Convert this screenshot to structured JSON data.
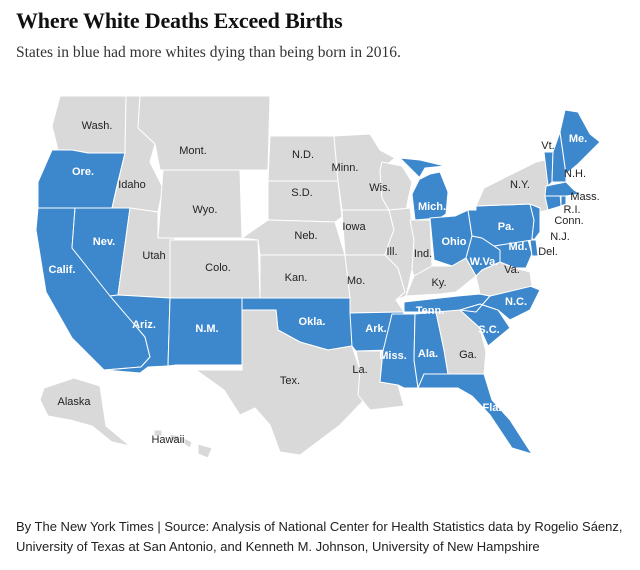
{
  "title": "Where White Deaths Exceed Births",
  "subtitle": "States in blue had more whites dying than being born in 2016.",
  "credit": "By The New York Times | Source: Analysis of National Center for Health Statistics data by Rogelio Sáenz, University of Texas at San Antonio, and Kenneth M. Johnson, University of New Hampshire",
  "colors": {
    "highlight": "#3d87cc",
    "other": "#d9d9d9",
    "highlight_text": "#ffffff",
    "other_text": "#222222"
  },
  "states": [
    {
      "id": "wa",
      "label": "Wash.",
      "highlight": false
    },
    {
      "id": "or",
      "label": "Ore.",
      "highlight": true
    },
    {
      "id": "ca",
      "label": "Calif.",
      "highlight": true
    },
    {
      "id": "nv",
      "label": "Nev.",
      "highlight": true
    },
    {
      "id": "id",
      "label": "Idaho",
      "highlight": false
    },
    {
      "id": "mt",
      "label": "Mont.",
      "highlight": false
    },
    {
      "id": "wy",
      "label": "Wyo.",
      "highlight": false
    },
    {
      "id": "ut",
      "label": "Utah",
      "highlight": false
    },
    {
      "id": "co",
      "label": "Colo.",
      "highlight": false
    },
    {
      "id": "az",
      "label": "Ariz.",
      "highlight": true
    },
    {
      "id": "nm",
      "label": "N.M.",
      "highlight": true
    },
    {
      "id": "nd",
      "label": "N.D.",
      "highlight": false
    },
    {
      "id": "sd",
      "label": "S.D.",
      "highlight": false
    },
    {
      "id": "ne",
      "label": "Neb.",
      "highlight": false
    },
    {
      "id": "ks",
      "label": "Kan.",
      "highlight": false
    },
    {
      "id": "ok",
      "label": "Okla.",
      "highlight": true
    },
    {
      "id": "tx",
      "label": "Tex.",
      "highlight": false
    },
    {
      "id": "mn",
      "label": "Minn.",
      "highlight": false
    },
    {
      "id": "ia",
      "label": "Iowa",
      "highlight": false
    },
    {
      "id": "mo",
      "label": "Mo.",
      "highlight": false
    },
    {
      "id": "ar",
      "label": "Ark.",
      "highlight": true
    },
    {
      "id": "la",
      "label": "La.",
      "highlight": false
    },
    {
      "id": "wi",
      "label": "Wis.",
      "highlight": false
    },
    {
      "id": "il",
      "label": "Ill.",
      "highlight": false
    },
    {
      "id": "mi",
      "label": "Mich.",
      "highlight": true
    },
    {
      "id": "in",
      "label": "Ind.",
      "highlight": false
    },
    {
      "id": "oh",
      "label": "Ohio",
      "highlight": true
    },
    {
      "id": "ky",
      "label": "Ky.",
      "highlight": false
    },
    {
      "id": "tn",
      "label": "Tenn.",
      "highlight": true
    },
    {
      "id": "ms",
      "label": "Miss.",
      "highlight": true
    },
    {
      "id": "al",
      "label": "Ala.",
      "highlight": true
    },
    {
      "id": "ga",
      "label": "Ga.",
      "highlight": false
    },
    {
      "id": "fl",
      "label": "Fla.",
      "highlight": true
    },
    {
      "id": "sc",
      "label": "S.C.",
      "highlight": true
    },
    {
      "id": "nc",
      "label": "N.C.",
      "highlight": true
    },
    {
      "id": "va",
      "label": "Va.",
      "highlight": false
    },
    {
      "id": "wv",
      "label": "W.Va.",
      "highlight": true
    },
    {
      "id": "md",
      "label": "Md.",
      "highlight": true
    },
    {
      "id": "de",
      "label": "Del.",
      "highlight": true
    },
    {
      "id": "pa",
      "label": "Pa.",
      "highlight": true
    },
    {
      "id": "nj",
      "label": "N.J.",
      "highlight": true
    },
    {
      "id": "ny",
      "label": "N.Y.",
      "highlight": false
    },
    {
      "id": "ct",
      "label": "Conn.",
      "highlight": true
    },
    {
      "id": "ri",
      "label": "R.I.",
      "highlight": true
    },
    {
      "id": "ma",
      "label": "Mass.",
      "highlight": true
    },
    {
      "id": "vt",
      "label": "Vt.",
      "highlight": true
    },
    {
      "id": "nh",
      "label": "N.H.",
      "highlight": true
    },
    {
      "id": "me",
      "label": "Me.",
      "highlight": true
    },
    {
      "id": "ak",
      "label": "Alaska",
      "highlight": false
    },
    {
      "id": "hi",
      "label": "Hawaii",
      "highlight": false
    }
  ]
}
